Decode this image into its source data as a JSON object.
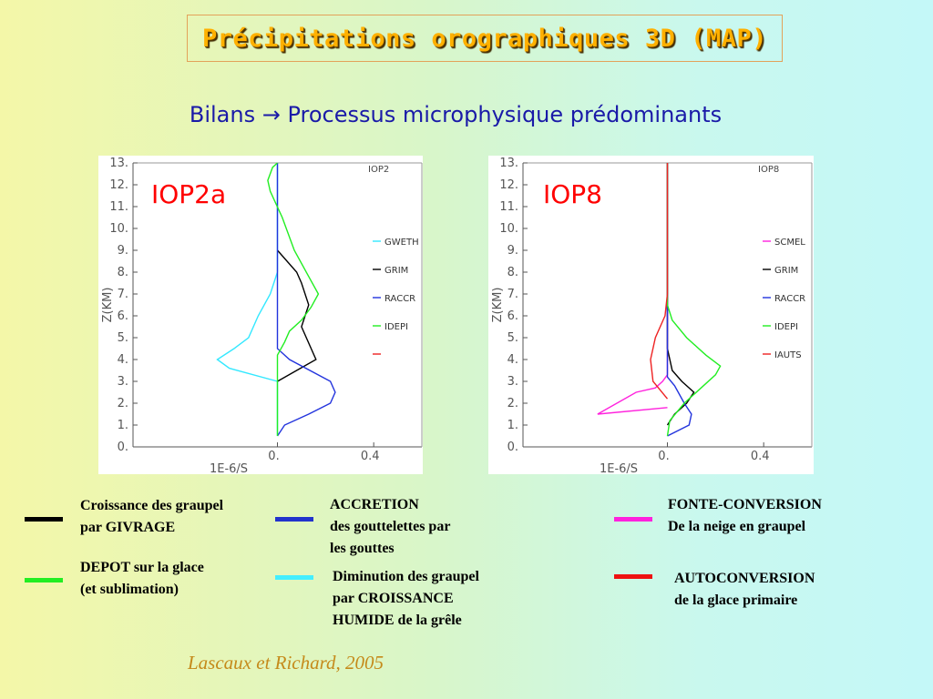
{
  "title": "Précipitations orographiques 3D (MAP)",
  "subtitle": "Bilans → Processus microphysique prédominants",
  "chart_data": [
    {
      "type": "line",
      "big_label": "IOP2a",
      "corner_label": "IOP2",
      "ylabel": "Z(KM)",
      "xlabel": "1E-6/S",
      "xlim": [
        -0.6,
        0.6
      ],
      "ylim": [
        0,
        13
      ],
      "yticks": [
        "0.",
        "1.",
        "2.",
        "3.",
        "4.",
        "5.",
        "6.",
        "7.",
        "8.",
        "9.",
        "10.",
        "11.",
        "12.",
        "13."
      ],
      "xticks": [
        "0.",
        "0.4"
      ],
      "series": [
        {
          "name": "GWETH",
          "color": "#33e8ff",
          "points": [
            [
              0.0,
              0.5
            ],
            [
              0.0,
              2.0
            ],
            [
              0.0,
              3.0
            ],
            [
              -0.2,
              3.6
            ],
            [
              -0.25,
              4.0
            ],
            [
              -0.18,
              4.5
            ],
            [
              -0.12,
              5.0
            ],
            [
              -0.08,
              6.0
            ],
            [
              -0.03,
              7.0
            ],
            [
              0.0,
              8.0
            ],
            [
              0.0,
              13.0
            ]
          ]
        },
        {
          "name": "GRIM",
          "color": "#000000",
          "points": [
            [
              0.0,
              3.0
            ],
            [
              0.08,
              3.5
            ],
            [
              0.16,
              4.0
            ],
            [
              0.14,
              4.5
            ],
            [
              0.1,
              5.5
            ],
            [
              0.13,
              6.5
            ],
            [
              0.1,
              7.5
            ],
            [
              0.08,
              8.0
            ],
            [
              0.0,
              9.0
            ]
          ]
        },
        {
          "name": "RACCR",
          "color": "#2233dd",
          "points": [
            [
              0.0,
              0.5
            ],
            [
              0.03,
              1.0
            ],
            [
              0.13,
              1.5
            ],
            [
              0.22,
              2.0
            ],
            [
              0.24,
              2.5
            ],
            [
              0.22,
              3.0
            ],
            [
              0.05,
              4.0
            ],
            [
              0.0,
              4.5
            ],
            [
              0.0,
              13.0
            ]
          ]
        },
        {
          "name": "IDEPI",
          "color": "#22ee22",
          "points": [
            [
              0.0,
              0.5
            ],
            [
              0.0,
              3.0
            ],
            [
              0.0,
              4.2
            ],
            [
              0.03,
              4.8
            ],
            [
              0.05,
              5.3
            ],
            [
              0.1,
              5.8
            ],
            [
              0.14,
              6.4
            ],
            [
              0.17,
              7.0
            ],
            [
              0.13,
              7.8
            ],
            [
              0.07,
              9.0
            ],
            [
              0.02,
              10.5
            ],
            [
              -0.03,
              11.7
            ],
            [
              -0.04,
              12.2
            ],
            [
              -0.02,
              12.8
            ],
            [
              0.0,
              13.0
            ]
          ]
        },
        {
          "name": "",
          "color": "#ee2222",
          "points": []
        }
      ]
    },
    {
      "type": "line",
      "big_label": "IOP8",
      "corner_label": "IOP8",
      "ylabel": "Z(KM)",
      "xlabel": "1E-6/S",
      "xlim": [
        -0.6,
        0.6
      ],
      "ylim": [
        0,
        13
      ],
      "yticks": [
        "0.",
        "1.",
        "2.",
        "3.",
        "4.",
        "5.",
        "6.",
        "7.",
        "8.",
        "9.",
        "10.",
        "11.",
        "12.",
        "13."
      ],
      "xticks": [
        "0.",
        "0.4"
      ],
      "series": [
        {
          "name": "SCMEL",
          "color": "#ff22dd",
          "points": [
            [
              0.0,
              1.8
            ],
            [
              -0.29,
              1.5
            ],
            [
              -0.13,
              2.5
            ],
            [
              -0.05,
              2.7
            ],
            [
              -0.02,
              3.0
            ],
            [
              0.0,
              3.3
            ],
            [
              0.0,
              13.0
            ]
          ]
        },
        {
          "name": "GRIM",
          "color": "#000000",
          "points": [
            [
              0.0,
              1.0
            ],
            [
              0.03,
              1.5
            ],
            [
              0.08,
              2.0
            ],
            [
              0.11,
              2.5
            ],
            [
              0.06,
              3.0
            ],
            [
              0.02,
              3.5
            ],
            [
              0.0,
              4.5
            ],
            [
              0.0,
              13.0
            ]
          ]
        },
        {
          "name": "RACCR",
          "color": "#2233dd",
          "points": [
            [
              0.0,
              0.5
            ],
            [
              0.09,
              1.0
            ],
            [
              0.1,
              1.5
            ],
            [
              0.07,
              2.0
            ],
            [
              0.03,
              2.8
            ],
            [
              0.0,
              3.2
            ],
            [
              0.0,
              13.0
            ]
          ]
        },
        {
          "name": "IDEPI",
          "color": "#22ee22",
          "points": [
            [
              0.0,
              0.5
            ],
            [
              0.01,
              1.2
            ],
            [
              0.07,
              2.0
            ],
            [
              0.2,
              3.3
            ],
            [
              0.22,
              3.7
            ],
            [
              0.16,
              4.2
            ],
            [
              0.08,
              5.0
            ],
            [
              0.02,
              5.8
            ],
            [
              0.0,
              6.5
            ],
            [
              0.0,
              13.0
            ]
          ]
        },
        {
          "name": "IAUTS",
          "color": "#ee2222",
          "points": [
            [
              0.0,
              2.2
            ],
            [
              -0.06,
              3.0
            ],
            [
              -0.07,
              4.0
            ],
            [
              -0.05,
              5.0
            ],
            [
              -0.01,
              6.0
            ],
            [
              0.0,
              7.0
            ],
            [
              0.0,
              13.0
            ]
          ]
        }
      ]
    }
  ],
  "legend": [
    {
      "color": "#000000",
      "text": "Croissance des graupel\npar GIVRAGE"
    },
    {
      "color": "#22ee22",
      "text": "DEPOT sur la glace\n(et sublimation)"
    },
    {
      "color": "#2233cc",
      "text": "ACCRETION\ndes gouttelettes par\nles gouttes"
    },
    {
      "color": "#44eeff",
      "text": "Diminution des graupel\npar CROISSANCE\nHUMIDE de la grêle"
    },
    {
      "color": "#ff22dd",
      "text": "FONTE-CONVERSION\nDe la neige en graupel"
    },
    {
      "color": "#ee1111",
      "text": "AUTOCONVERSION\nde la glace primaire"
    }
  ],
  "citation": "Lascaux et Richard, 2005"
}
